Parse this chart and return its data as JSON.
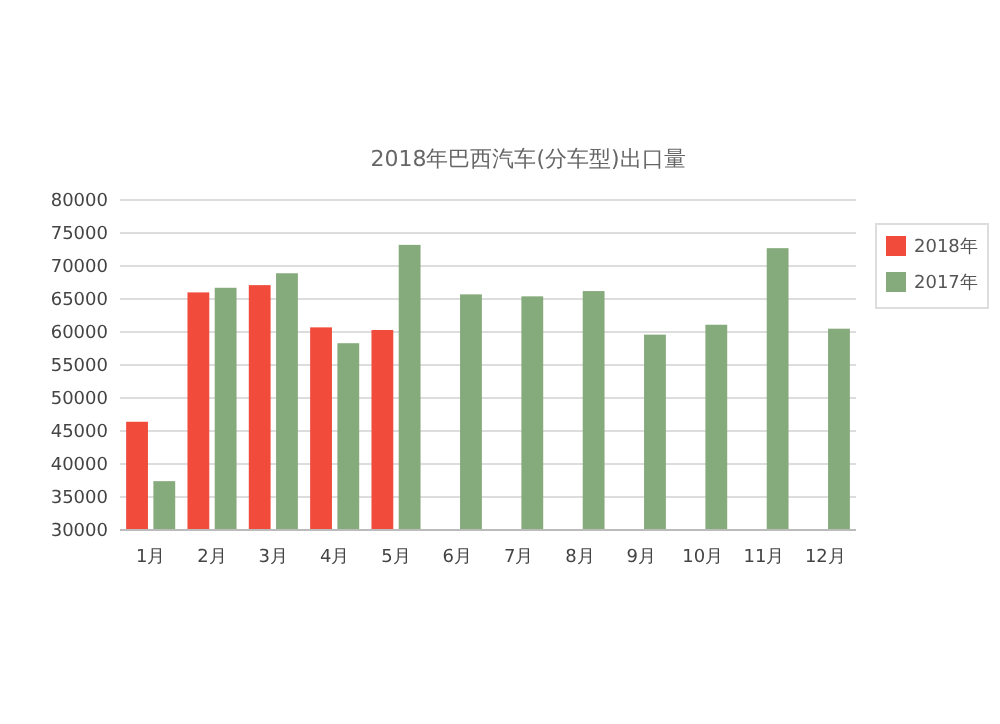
{
  "chart_data": {
    "type": "bar",
    "title": "2018年巴西汽车(分车型)出口量",
    "categories": [
      "1月",
      "2月",
      "3月",
      "4月",
      "5月",
      "6月",
      "7月",
      "8月",
      "9月",
      "10月",
      "11月",
      "12月"
    ],
    "series": [
      {
        "name": "2018年",
        "color": "#f04b3b",
        "values": [
          46400,
          66000,
          67100,
          60700,
          60300,
          null,
          null,
          null,
          null,
          null,
          null,
          null
        ]
      },
      {
        "name": "2017年",
        "color": "#85aa7b",
        "values": [
          37400,
          66700,
          68900,
          58300,
          73200,
          65700,
          65400,
          66200,
          59600,
          61100,
          72700,
          60500
        ]
      }
    ],
    "ylim": [
      30000,
      80000
    ],
    "yticks": [
      30000,
      35000,
      40000,
      45000,
      50000,
      55000,
      60000,
      65000,
      70000,
      75000,
      80000
    ],
    "grid": "y",
    "legend": "right"
  }
}
